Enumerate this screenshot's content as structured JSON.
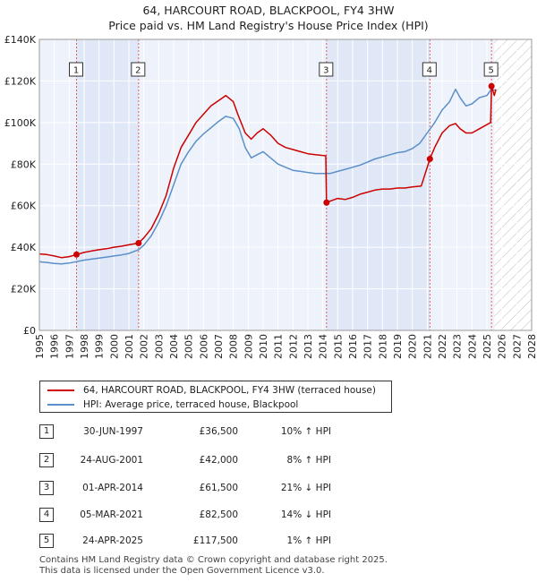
{
  "title_line1": "64, HARCOURT ROAD, BLACKPOOL, FY4 3HW",
  "title_line2": "Price paid vs. HM Land Registry's House Price Index (HPI)",
  "chart_data": {
    "type": "line",
    "xlim": [
      1995,
      2028
    ],
    "ylim": [
      0,
      140000
    ],
    "x_ticks": [
      1995,
      1996,
      1997,
      1998,
      1999,
      2000,
      2001,
      2002,
      2003,
      2004,
      2005,
      2006,
      2007,
      2008,
      2009,
      2010,
      2011,
      2012,
      2013,
      2014,
      2015,
      2016,
      2017,
      2018,
      2019,
      2020,
      2021,
      2022,
      2023,
      2024,
      2025,
      2026,
      2027,
      2028
    ],
    "y_ticks": [
      {
        "value": 0,
        "label": "£0"
      },
      {
        "value": 20000,
        "label": "£20K"
      },
      {
        "value": 40000,
        "label": "£40K"
      },
      {
        "value": 60000,
        "label": "£60K"
      },
      {
        "value": 80000,
        "label": "£80K"
      },
      {
        "value": 100000,
        "label": "£100K"
      },
      {
        "value": 120000,
        "label": "£120K"
      },
      {
        "value": 140000,
        "label": "£140K"
      }
    ],
    "projection_start": 2025.5,
    "series": [
      {
        "name": "64, HARCOURT ROAD, BLACKPOOL, FY4 3HW (terraced house)",
        "color": "#cc0000",
        "points": [
          [
            1995,
            36800
          ],
          [
            1995.5,
            36500
          ],
          [
            1996,
            35800
          ],
          [
            1996.5,
            35000
          ],
          [
            1997,
            35500
          ],
          [
            1997.5,
            36500
          ],
          [
            1998,
            37500
          ],
          [
            1998.5,
            38200
          ],
          [
            1999,
            38800
          ],
          [
            1999.5,
            39300
          ],
          [
            2000,
            40000
          ],
          [
            2000.5,
            40500
          ],
          [
            2001,
            41200
          ],
          [
            2001.65,
            42000
          ],
          [
            2002,
            44500
          ],
          [
            2002.5,
            49000
          ],
          [
            2003,
            56000
          ],
          [
            2003.5,
            65000
          ],
          [
            2004,
            78000
          ],
          [
            2004.5,
            88000
          ],
          [
            2005,
            94000
          ],
          [
            2005.5,
            100000
          ],
          [
            2006,
            104000
          ],
          [
            2006.5,
            108000
          ],
          [
            2007,
            110500
          ],
          [
            2007.5,
            113000
          ],
          [
            2008,
            110000
          ],
          [
            2008.3,
            104000
          ],
          [
            2008.8,
            95000
          ],
          [
            2009.2,
            92000
          ],
          [
            2009.6,
            95000
          ],
          [
            2010,
            97000
          ],
          [
            2010.5,
            94000
          ],
          [
            2011,
            90000
          ],
          [
            2011.5,
            88000
          ],
          [
            2012,
            87000
          ],
          [
            2012.5,
            86000
          ],
          [
            2013,
            85000
          ],
          [
            2013.5,
            84500
          ],
          [
            2014.2,
            84000
          ],
          [
            2014.25,
            61500
          ],
          [
            2014.6,
            62500
          ],
          [
            2015,
            63500
          ],
          [
            2015.5,
            63000
          ],
          [
            2016,
            64000
          ],
          [
            2016.5,
            65500
          ],
          [
            2017,
            66500
          ],
          [
            2017.5,
            67500
          ],
          [
            2018,
            68000
          ],
          [
            2018.5,
            68000
          ],
          [
            2019,
            68500
          ],
          [
            2019.5,
            68500
          ],
          [
            2020,
            69000
          ],
          [
            2020.6,
            69500
          ],
          [
            2021.18,
            82500
          ],
          [
            2021.5,
            88000
          ],
          [
            2022,
            95000
          ],
          [
            2022.5,
            98500
          ],
          [
            2022.9,
            99500
          ],
          [
            2023.2,
            97000
          ],
          [
            2023.6,
            95000
          ],
          [
            2024,
            95000
          ],
          [
            2024.5,
            97000
          ],
          [
            2025,
            99000
          ],
          [
            2025.25,
            100000
          ],
          [
            2025.31,
            117500
          ],
          [
            2025.5,
            113000
          ],
          [
            2025.6,
            116000
          ]
        ]
      },
      {
        "name": "HPI: Average price, terraced house, Blackpool",
        "color": "#5b8fc9",
        "points": [
          [
            1995,
            33000
          ],
          [
            1995.5,
            32700
          ],
          [
            1996,
            32200
          ],
          [
            1996.5,
            32000
          ],
          [
            1997,
            32400
          ],
          [
            1997.5,
            33100
          ],
          [
            1998,
            33800
          ],
          [
            1998.5,
            34300
          ],
          [
            1999,
            34800
          ],
          [
            1999.5,
            35300
          ],
          [
            2000,
            35800
          ],
          [
            2000.5,
            36300
          ],
          [
            2001,
            37000
          ],
          [
            2001.65,
            38800
          ],
          [
            2002,
            41000
          ],
          [
            2002.5,
            45500
          ],
          [
            2003,
            52000
          ],
          [
            2003.5,
            60000
          ],
          [
            2004,
            70000
          ],
          [
            2004.5,
            80000
          ],
          [
            2005,
            86000
          ],
          [
            2005.5,
            91000
          ],
          [
            2006,
            94500
          ],
          [
            2006.5,
            97500
          ],
          [
            2007,
            100500
          ],
          [
            2007.5,
            103000
          ],
          [
            2008,
            102000
          ],
          [
            2008.4,
            97000
          ],
          [
            2008.8,
            88000
          ],
          [
            2009.2,
            83000
          ],
          [
            2009.6,
            84500
          ],
          [
            2010,
            86000
          ],
          [
            2010.5,
            83000
          ],
          [
            2011,
            80000
          ],
          [
            2011.5,
            78500
          ],
          [
            2012,
            77000
          ],
          [
            2012.5,
            76500
          ],
          [
            2013,
            76000
          ],
          [
            2013.5,
            75500
          ],
          [
            2014,
            75500
          ],
          [
            2014.5,
            75500
          ],
          [
            2015,
            76500
          ],
          [
            2015.5,
            77500
          ],
          [
            2016,
            78500
          ],
          [
            2016.5,
            79500
          ],
          [
            2017,
            81000
          ],
          [
            2017.5,
            82500
          ],
          [
            2018,
            83500
          ],
          [
            2018.5,
            84500
          ],
          [
            2019,
            85500
          ],
          [
            2019.5,
            86000
          ],
          [
            2020,
            87500
          ],
          [
            2020.5,
            90000
          ],
          [
            2021,
            95000
          ],
          [
            2021.5,
            100000
          ],
          [
            2022,
            106000
          ],
          [
            2022.5,
            110000
          ],
          [
            2022.9,
            116000
          ],
          [
            2023.2,
            112000
          ],
          [
            2023.6,
            108000
          ],
          [
            2024,
            109000
          ],
          [
            2024.5,
            112000
          ],
          [
            2025,
            113000
          ],
          [
            2025.3,
            116000
          ],
          [
            2025.6,
            115500
          ]
        ]
      }
    ],
    "sales": [
      {
        "label": "1",
        "x": 1997.49,
        "y": 36500
      },
      {
        "label": "2",
        "x": 2001.65,
        "y": 42000
      },
      {
        "label": "3",
        "x": 2014.25,
        "y": 61500
      },
      {
        "label": "4",
        "x": 2021.18,
        "y": 82500
      },
      {
        "label": "5",
        "x": 2025.31,
        "y": 117500
      }
    ]
  },
  "legend": {
    "price_label": "64, HARCOURT ROAD, BLACKPOOL, FY4 3HW (terraced house)",
    "hpi_label": "HPI: Average price, terraced house, Blackpool"
  },
  "table": [
    {
      "num": "1",
      "date": "30-JUN-1997",
      "price": "£36,500",
      "diff": "10% ↑ HPI"
    },
    {
      "num": "2",
      "date": "24-AUG-2001",
      "price": "£42,000",
      "diff": "8% ↑ HPI"
    },
    {
      "num": "3",
      "date": "01-APR-2014",
      "price": "£61,500",
      "diff": "21% ↓ HPI"
    },
    {
      "num": "4",
      "date": "05-MAR-2021",
      "price": "£82,500",
      "diff": "14% ↓ HPI"
    },
    {
      "num": "5",
      "date": "24-APR-2025",
      "price": "£117,500",
      "diff": "1% ↑ HPI"
    }
  ],
  "footer": {
    "line1": "Contains HM Land Registry data © Crown copyright and database right 2025.",
    "line2": "This data is licensed under the Open Government Licence v3.0."
  }
}
